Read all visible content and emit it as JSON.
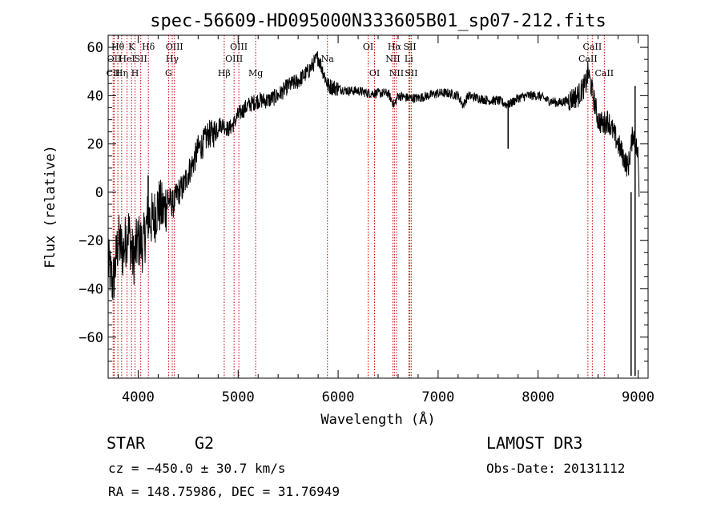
{
  "chart_data": {
    "type": "line",
    "title": "spec-56609-HD095000N333605B01_sp07-212.fits",
    "xlabel": "Wavelength (Å)",
    "ylabel": "Flux (relative)",
    "xlim": [
      3700,
      9100
    ],
    "ylim": [
      -77,
      65
    ],
    "x_ticks": [
      4000,
      5000,
      6000,
      7000,
      8000,
      9000
    ],
    "y_ticks": [
      -60,
      -40,
      -20,
      0,
      20,
      40,
      60
    ],
    "grid": false,
    "series": [
      {
        "values_x": [
          3700,
          3750,
          3800,
          3850,
          3900,
          3950,
          4000,
          4050,
          4100,
          4150,
          4200,
          4250,
          4300,
          4350,
          4400,
          4450,
          4500,
          4550,
          4600,
          4650,
          4700,
          4750,
          4800,
          4850,
          4900,
          4950,
          5000,
          5100,
          5200,
          5300,
          5400,
          5500,
          5600,
          5700,
          5800,
          5850,
          5900,
          6000,
          6100,
          6200,
          6300,
          6400,
          6500,
          6560,
          6600,
          6700,
          6800,
          6900,
          7000,
          7100,
          7200,
          7250,
          7300,
          7400,
          7500,
          7600,
          7700,
          7800,
          7900,
          8000,
          8100,
          8200,
          8300,
          8400,
          8480,
          8500,
          8550,
          8600,
          8650,
          8700,
          8750,
          8800,
          8850,
          8900,
          8950,
          9000,
          9010
        ],
        "values_y": [
          -30,
          -38,
          -20,
          -25,
          -15,
          -28,
          -20,
          -22,
          -10,
          -12,
          -5,
          -8,
          -3,
          -5,
          0,
          2,
          8,
          12,
          18,
          20,
          24,
          24,
          28,
          28,
          26,
          28,
          32,
          36,
          38,
          38,
          40,
          44,
          46,
          50,
          56,
          50,
          44,
          43,
          42,
          42,
          41,
          41,
          41,
          36,
          40,
          39,
          39,
          40,
          41,
          41,
          40,
          36,
          40,
          39,
          38,
          38,
          36,
          39,
          40,
          40,
          38,
          37,
          38,
          40,
          45,
          50,
          40,
          30,
          28,
          30,
          25,
          20,
          15,
          10,
          25,
          15,
          0
        ]
      }
    ],
    "spectral_lines": [
      {
        "wavelength": 3750,
        "label": "CII",
        "row": 3
      },
      {
        "wavelength": 3760,
        "label": "OII",
        "row": 2
      },
      {
        "wavelength": 3797,
        "label": "Hθ",
        "row": 1
      },
      {
        "wavelength": 3835,
        "label": "Hη",
        "row": 3
      },
      {
        "wavelength": 3889,
        "label": "HeI",
        "row": 2
      },
      {
        "wavelength": 3934,
        "label": "K",
        "row": 1
      },
      {
        "wavelength": 3969,
        "label": "H",
        "row": 3
      },
      {
        "wavelength": 4026,
        "label": "SII",
        "row": 2
      },
      {
        "wavelength": 4102,
        "label": "Hδ",
        "row": 1
      },
      {
        "wavelength": 4304,
        "label": "G",
        "row": 3
      },
      {
        "wavelength": 4341,
        "label": "Hγ",
        "row": 2
      },
      {
        "wavelength": 4363,
        "label": "OIII",
        "row": 1
      },
      {
        "wavelength": 4861,
        "label": "Hβ",
        "row": 3
      },
      {
        "wavelength": 4959,
        "label": "OIII",
        "row": 2
      },
      {
        "wavelength": 5007,
        "label": "OIII",
        "row": 1
      },
      {
        "wavelength": 5175,
        "label": "Mg",
        "row": 3
      },
      {
        "wavelength": 5893,
        "label": "Na",
        "row": 2
      },
      {
        "wavelength": 6300,
        "label": "OI",
        "row": 1
      },
      {
        "wavelength": 6364,
        "label": "OI",
        "row": 3
      },
      {
        "wavelength": 6548,
        "label": "NII",
        "row": 2
      },
      {
        "wavelength": 6563,
        "label": "Hα",
        "row": 1
      },
      {
        "wavelength": 6584,
        "label": "NII",
        "row": 3
      },
      {
        "wavelength": 6707,
        "label": "Li",
        "row": 2
      },
      {
        "wavelength": 6717,
        "label": "SII",
        "row": 1
      },
      {
        "wavelength": 6731,
        "label": "SII",
        "row": 3
      },
      {
        "wavelength": 8498,
        "label": "CaII",
        "row": 2
      },
      {
        "wavelength": 8542,
        "label": "CaII",
        "row": 1
      },
      {
        "wavelength": 8662,
        "label": "CaII",
        "row": 3
      }
    ]
  },
  "info": {
    "class": "STAR",
    "subclass": "G2",
    "survey": "LAMOST DR3",
    "cz": "cz = −450.0 ± 30.7 km/s",
    "obs_date": "Obs-Date: 20131112",
    "radec": "RA = 148.75986, DEC =  31.76949"
  }
}
